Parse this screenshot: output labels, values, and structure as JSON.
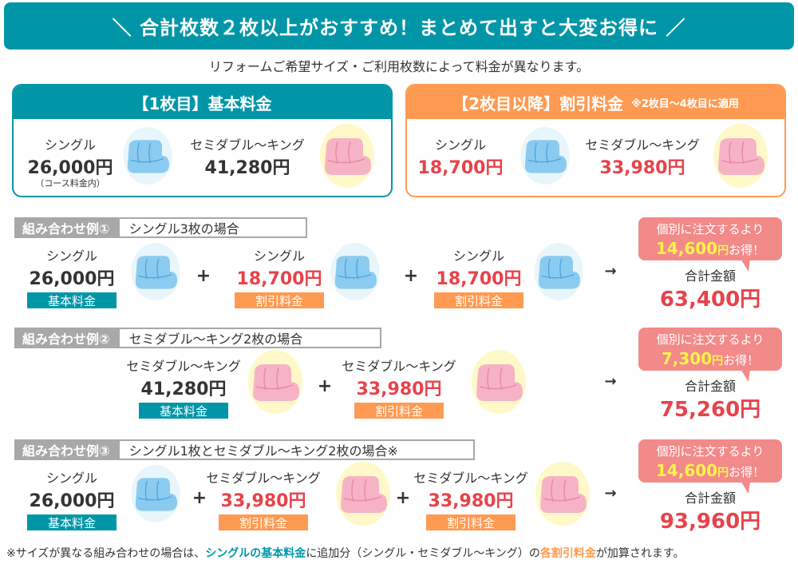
{
  "banner": {
    "title": "＼ 合計枚数２枚以上がおすすめ！まとめて出すと大変お得に ／"
  },
  "subtitle": "リフォームご希望サイズ・ご利用枚数によって料金が異なります。",
  "colors": {
    "teal": "#0096a8",
    "orange": "#ff9a52",
    "red": "#e8424a",
    "bubble": "#f28a8a",
    "highlight": "#fff34a"
  },
  "basic": {
    "header": "【1枚目】基本料金",
    "single_name": "シングル",
    "single_price": "26,000円",
    "single_note": "（コース料金内）",
    "king_name": "セミダブル〜キング",
    "king_price": "41,280円"
  },
  "discount": {
    "header": "【2枚目以降】割引料金",
    "header_note": "※2枚目〜4枚目に適用",
    "single_name": "シングル",
    "single_price": "18,700円",
    "king_name": "セミダブル〜キング",
    "king_price": "33,980円"
  },
  "examples": [
    {
      "label": "組み合わせ例①",
      "title": "シングル3枚の場合",
      "items": [
        {
          "name": "シングル",
          "price": "26,000円",
          "badge": "基本料金",
          "type": "single"
        },
        {
          "name": "シングル",
          "price": "18,700円",
          "badge": "割引料金",
          "type": "single"
        },
        {
          "name": "シングル",
          "price": "18,700円",
          "badge": "割引料金",
          "type": "single"
        }
      ],
      "savings_pre": "個別に注文するより",
      "savings_amount": "14,600",
      "savings_unit": "円",
      "savings_post": "お得！",
      "total_label": "合計金額",
      "total": "63,400円"
    },
    {
      "label": "組み合わせ例②",
      "title": "セミダブル〜キング2枚の場合",
      "items": [
        {
          "name": "セミダブル〜キング",
          "price": "41,280円",
          "badge": "基本料金",
          "type": "king"
        },
        {
          "name": "セミダブル〜キング",
          "price": "33,980円",
          "badge": "割引料金",
          "type": "king"
        }
      ],
      "savings_pre": "個別に注文するより",
      "savings_amount": "7,300",
      "savings_unit": "円",
      "savings_post": "お得！",
      "total_label": "合計金額",
      "total": "75,260円"
    },
    {
      "label": "組み合わせ例③",
      "title": "シングル1枚とセミダブル〜キング2枚の場合※",
      "items": [
        {
          "name": "シングル",
          "price": "26,000円",
          "badge": "基本料金",
          "type": "single"
        },
        {
          "name": "セミダブル〜キング",
          "price": "33,980円",
          "badge": "割引料金",
          "type": "king"
        },
        {
          "name": "セミダブル〜キング",
          "price": "33,980円",
          "badge": "割引料金",
          "type": "king"
        }
      ],
      "savings_pre": "個別に注文するより",
      "savings_amount": "14,600",
      "savings_unit": "円",
      "savings_post": "お得！",
      "total_label": "合計金額",
      "total": "93,960円"
    }
  ],
  "plus": "+",
  "arrow": "→",
  "footnote": {
    "p1": "※サイズが異なる組み合わせの場合は、",
    "h1": "シングルの基本料金",
    "p2": "に追加分（シングル・セミダブル〜キング）の",
    "h2": "各割引料金",
    "p3": "が加算されます。"
  }
}
